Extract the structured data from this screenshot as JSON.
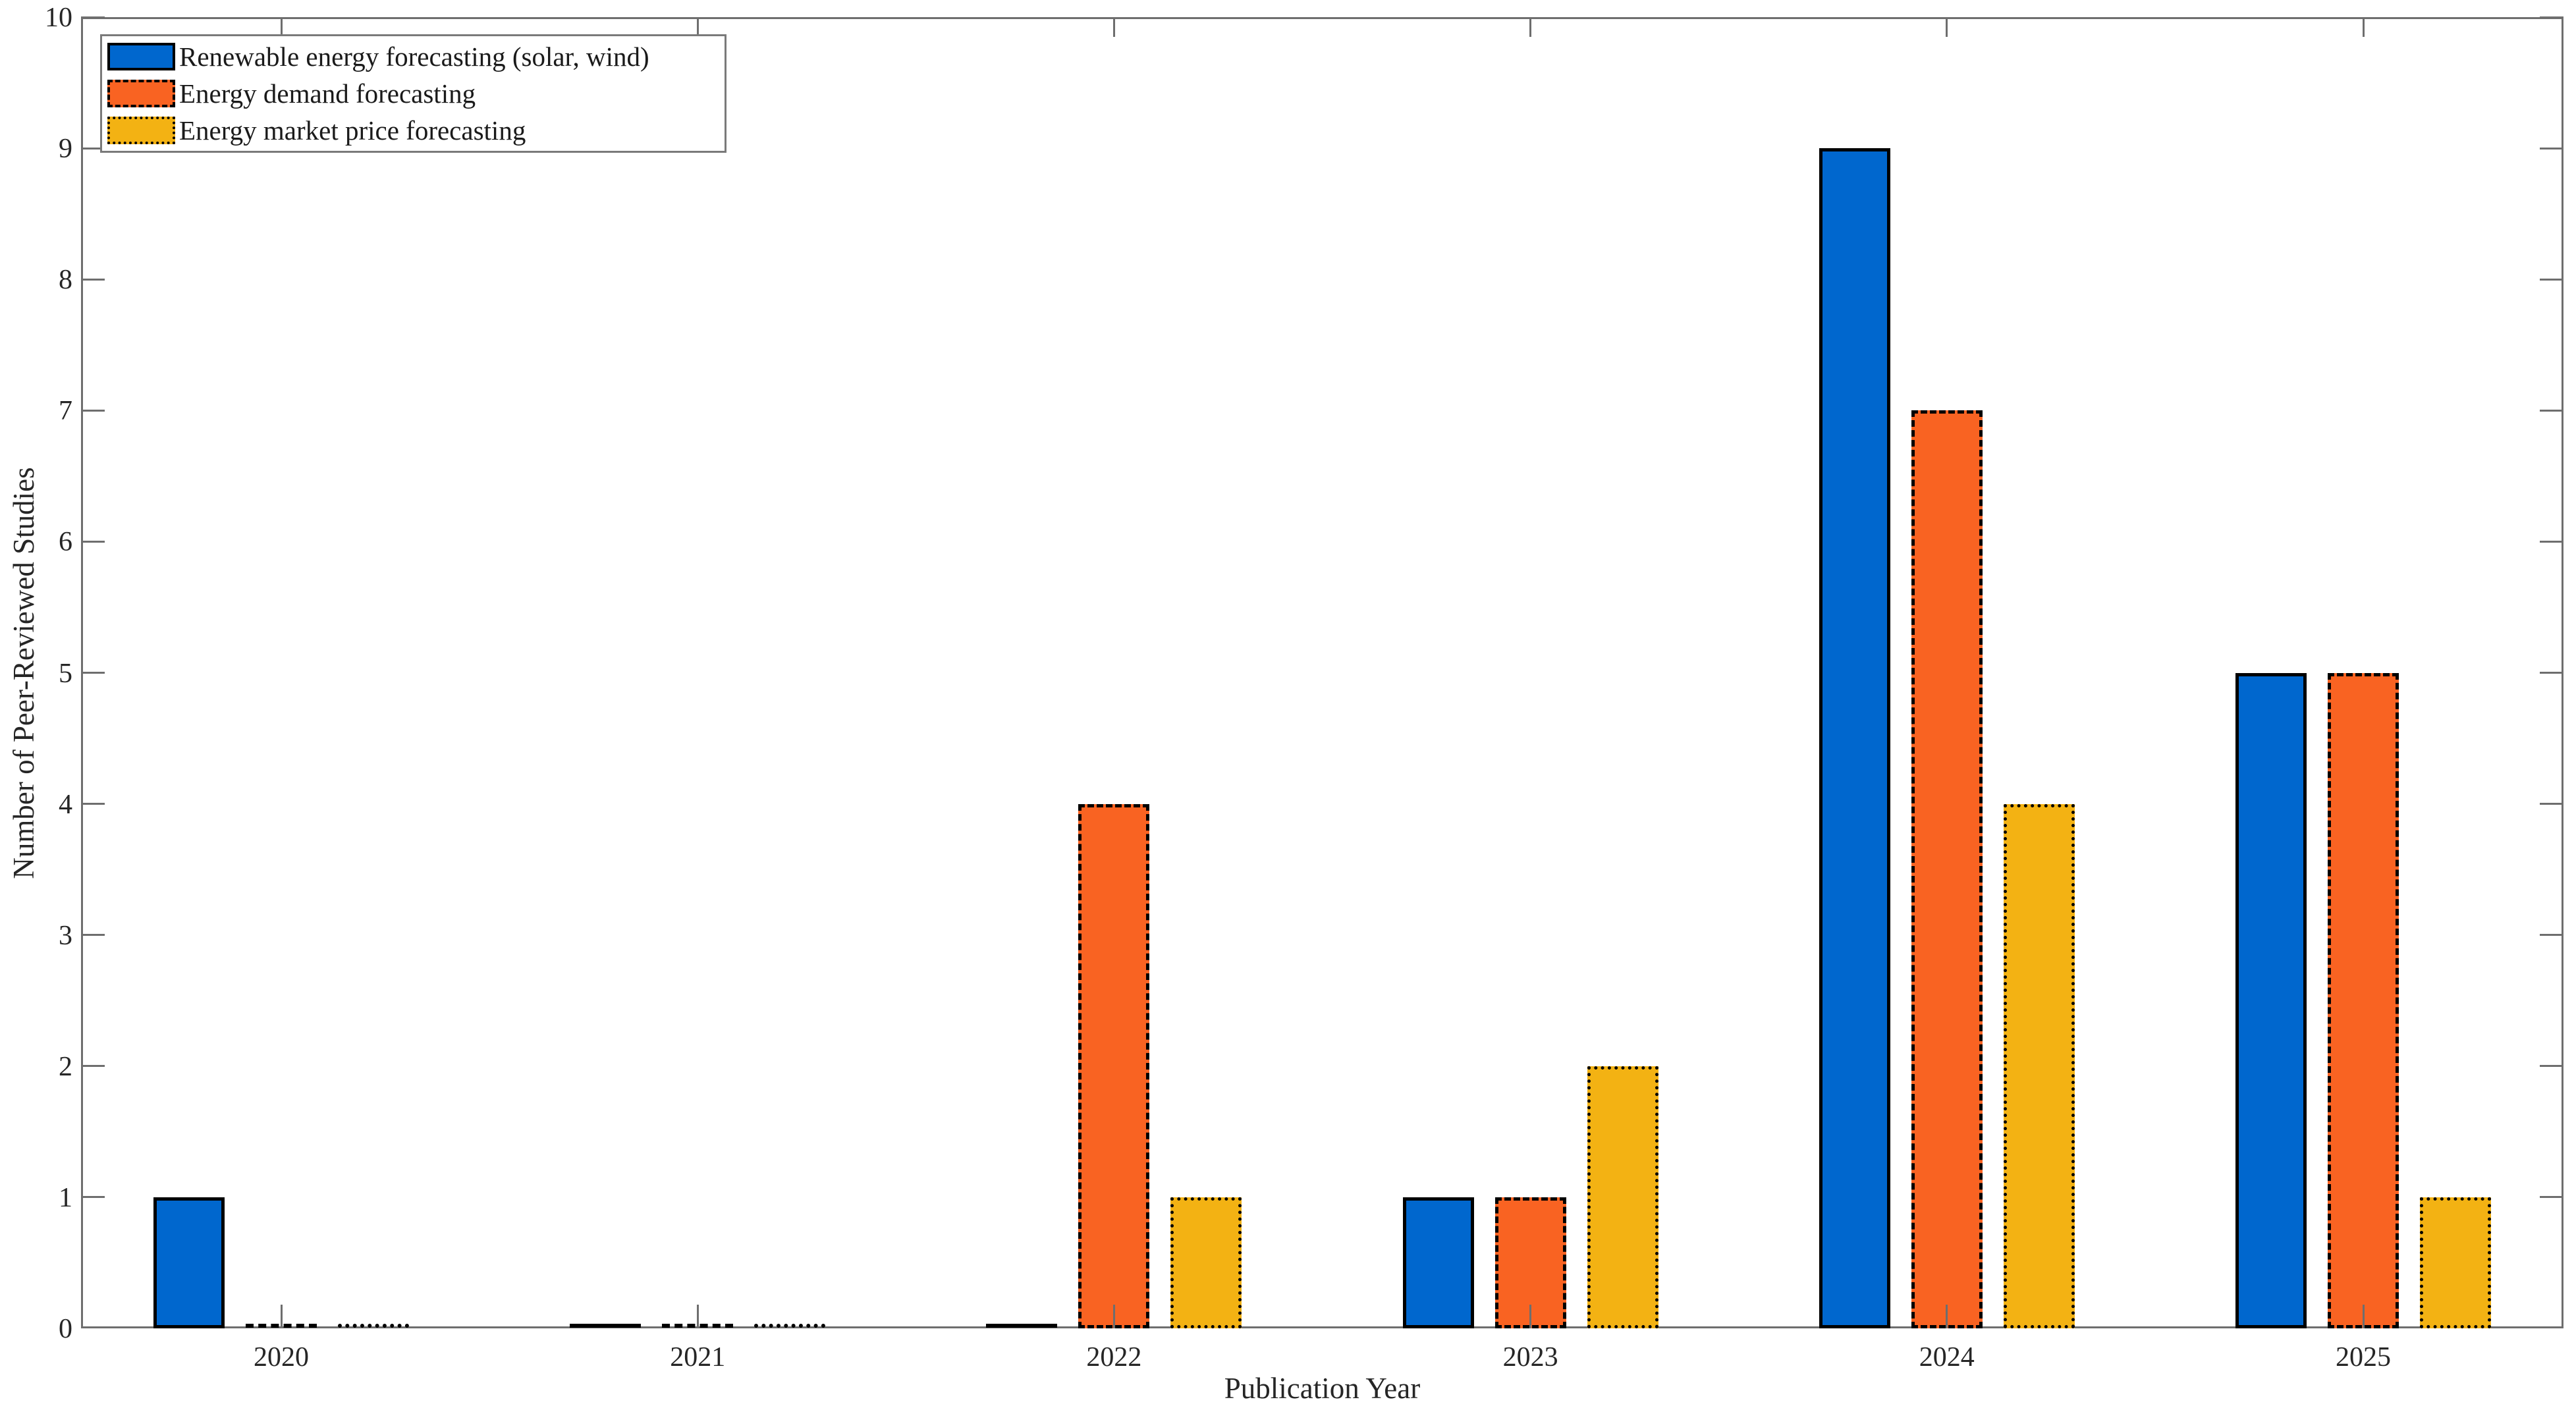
{
  "chart_data": {
    "type": "bar",
    "title": "",
    "categories": [
      "2020",
      "2021",
      "2022",
      "2023",
      "2024",
      "2025"
    ],
    "series": [
      {
        "name": "Renewable energy forecasting (solar, wind)",
        "color": "#0067CE",
        "border_style": "solid",
        "values": [
          1,
          0,
          0,
          1,
          9,
          5
        ]
      },
      {
        "name": "Energy demand forecasting",
        "color": "#F96322",
        "border_style": "dashed",
        "values": [
          0,
          0,
          4,
          1,
          7,
          5
        ]
      },
      {
        "name": "Energy market price forecasting",
        "color": "#F3B213",
        "border_style": "dotted",
        "values": [
          0,
          0,
          1,
          2,
          4,
          1
        ]
      }
    ],
    "xlabel": "Publication Year",
    "ylabel": "Number of Peer-Reviewed Studies",
    "ylim": [
      0,
      10
    ],
    "yticks": [
      0,
      1,
      2,
      3,
      4,
      5,
      6,
      7,
      8,
      9,
      10
    ],
    "legend_position": "top-left",
    "grid": false
  },
  "colors": {
    "axis_line": "#6e6e6e",
    "tick_label": "#262626",
    "bar_outline": "#000000",
    "legend_border": "#7a7a7a",
    "background": "#ffffff"
  }
}
